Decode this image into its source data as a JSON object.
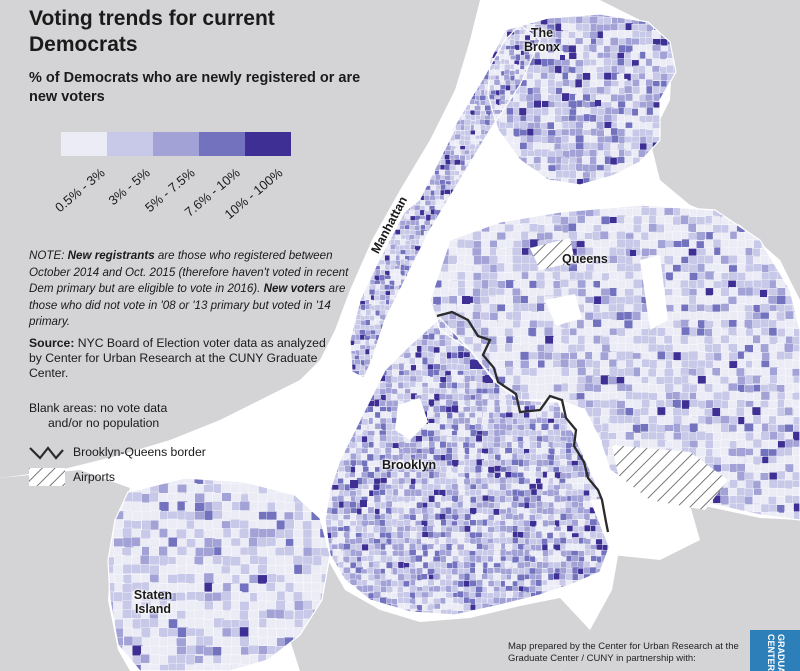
{
  "title": "Voting trends for current Democrats",
  "subtitle": "% of Democrats who are newly registered or are new voters",
  "legend": {
    "bins": [
      {
        "label": "0.5% - 3%",
        "color": "#ececf6"
      },
      {
        "label": "3% - 5%",
        "color": "#c8c8e8"
      },
      {
        "label": "5% - 7.5%",
        "color": "#a2a2d6"
      },
      {
        "label": "7.6% - 10%",
        "color": "#7272bf"
      },
      {
        "label": "10% - 100%",
        "color": "#3e2f95"
      }
    ]
  },
  "note": {
    "prefix": "NOTE: ",
    "term1": "New registrants",
    "text1": " are those who registered between October 2014 and Oct. 2015 (therefore haven't voted in recent Dem primary but are eligible to vote in 2016). ",
    "term2": "New voters",
    "text2": " are those who did not vote in '08 or '13 primary but voted in '14 primary."
  },
  "source": {
    "label": "Source:",
    "text": " NYC Board of Election voter data as analyzed by Center for Urban Research at the CUNY Graduate Center."
  },
  "blank_note": {
    "line1": "Blank areas: no vote data",
    "line2": "and/or no population"
  },
  "symbols": {
    "border_label": "Brooklyn-Queens border",
    "airports_label": "Airports"
  },
  "boroughs": {
    "bronx": "The Bronx",
    "manhattan": "Manhattan",
    "queens": "Queens",
    "brooklyn": "Brooklyn",
    "staten_island": "Staten Island"
  },
  "credit": "Map prepared by the Center for Urban Research at the Graduate Center / CUNY in partnership with:",
  "logo_text": "GRADUATE CENTER",
  "colors": {
    "water": "#ffffff",
    "land_context": "#d4d4d6",
    "border_line": "#2b2b2b"
  }
}
